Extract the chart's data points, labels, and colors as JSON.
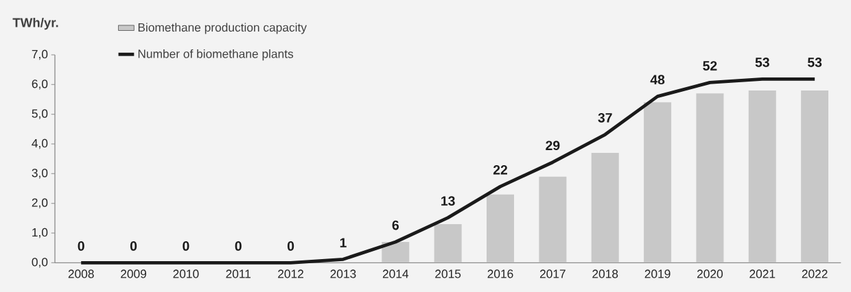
{
  "chart_data": {
    "type": "bar",
    "ylabel": "TWh/yr.",
    "categories": [
      "2008",
      "2009",
      "2010",
      "2011",
      "2012",
      "2013",
      "2014",
      "2015",
      "2016",
      "2017",
      "2018",
      "2019",
      "2020",
      "2021",
      "2022"
    ],
    "series": [
      {
        "name": "Biomethane production capacity",
        "color": "#c8c8c8",
        "values": [
          0,
          0,
          0,
          0,
          0,
          0,
          0.7,
          1.3,
          2.3,
          2.9,
          3.7,
          5.4,
          5.7,
          5.8,
          5.8
        ]
      },
      {
        "name": "Number of biomethane plants",
        "type": "line",
        "axis": "y2",
        "color": "#1a1a1a",
        "values": [
          0,
          0,
          0,
          0,
          0,
          1,
          6,
          13,
          22,
          29,
          37,
          48,
          52,
          53,
          53
        ],
        "value_labels": [
          "0",
          "0",
          "0",
          "0",
          "0",
          "1",
          "6",
          "13",
          "22",
          "29",
          "37",
          "48",
          "52",
          "53",
          "53"
        ]
      }
    ],
    "ylim": [
      0,
      7
    ],
    "yticks": [
      {
        "value": 0,
        "label": "0,0"
      },
      {
        "value": 1,
        "label": "1,0"
      },
      {
        "value": 2,
        "label": "2,0"
      },
      {
        "value": 3,
        "label": "3,0"
      },
      {
        "value": 4,
        "label": "4,0"
      },
      {
        "value": 5,
        "label": "5,0"
      },
      {
        "value": 6,
        "label": "6,0"
      },
      {
        "value": 7,
        "label": "7,0"
      }
    ],
    "y2lim": [
      0,
      60
    ],
    "legend": "top left",
    "marker": "none",
    "line_style": "solid"
  }
}
